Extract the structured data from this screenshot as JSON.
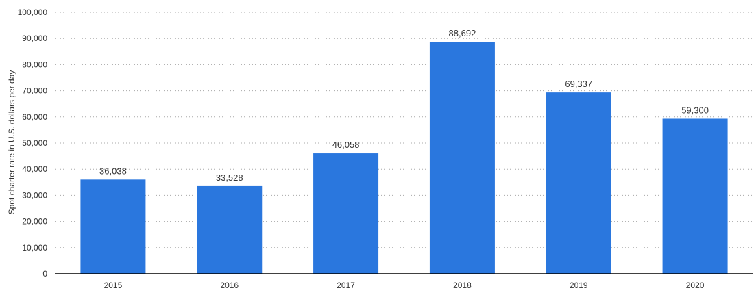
{
  "chart_data": {
    "type": "bar",
    "categories": [
      "2015",
      "2016",
      "2017",
      "2018",
      "2019",
      "2020"
    ],
    "values": [
      36038,
      33528,
      46058,
      88692,
      69337,
      59300
    ],
    "value_labels": [
      "36,038",
      "33,528",
      "46,058",
      "88,692",
      "69,337",
      "59,300"
    ],
    "ylabel": "Spot charter rate in U.S. dollars per day",
    "xlabel": "",
    "ylim": [
      0,
      100000
    ],
    "yticks": [
      0,
      10000,
      20000,
      30000,
      40000,
      50000,
      60000,
      70000,
      80000,
      90000,
      100000
    ],
    "ytick_labels": [
      "0",
      "10,000",
      "20,000",
      "30,000",
      "40,000",
      "50,000",
      "60,000",
      "70,000",
      "80,000",
      "90,000",
      "100,000"
    ],
    "grid": true,
    "bar_color": "#2a77de"
  }
}
